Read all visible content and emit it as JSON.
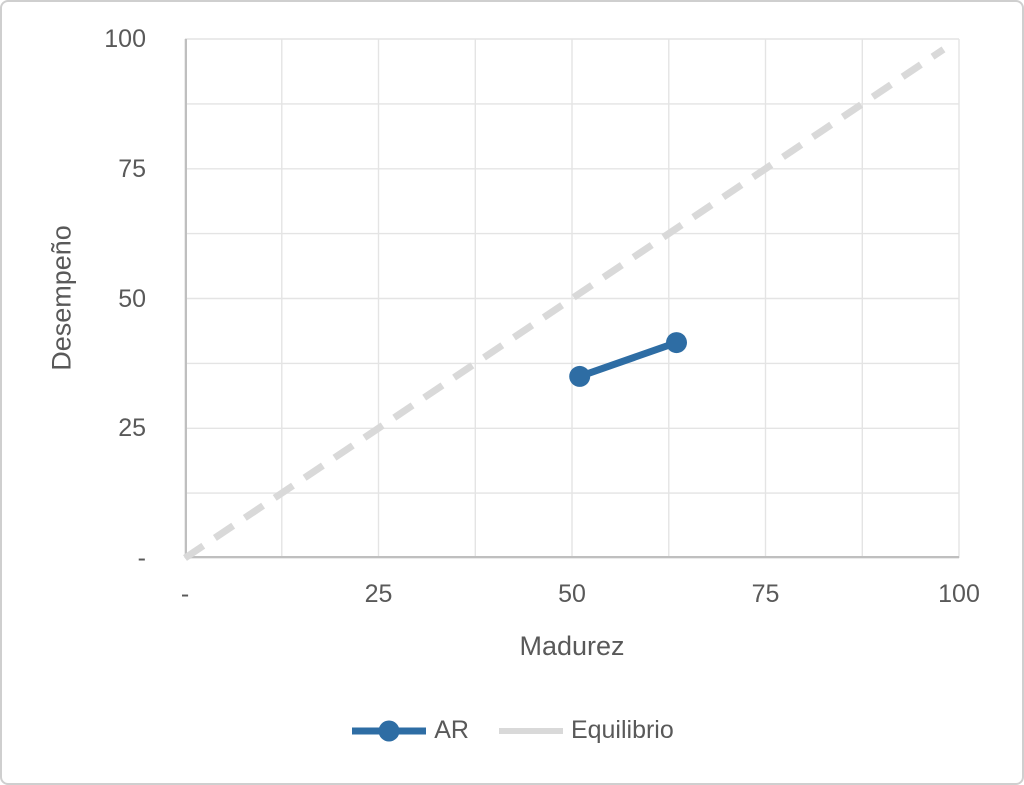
{
  "colors": {
    "accent_blue": "#2E6DA4",
    "equilibrio_gray": "#D9D9D9",
    "gridline": "#E4E4E4",
    "axis_line": "#BFBFBF",
    "text": "#595959",
    "background": "#FFFFFF",
    "frame_border": "#CFCFCF"
  },
  "chart_data": {
    "type": "line",
    "title": "",
    "xlabel": "Madurez",
    "ylabel": "Desempeño",
    "xlim": [
      0,
      100
    ],
    "ylim": [
      0,
      100
    ],
    "gridline_interval": 12.5,
    "grid": true,
    "legend_position": "bottom",
    "x_ticks": [
      {
        "value": 0,
        "label": "-"
      },
      {
        "value": 25,
        "label": "25"
      },
      {
        "value": 50,
        "label": "50"
      },
      {
        "value": 75,
        "label": "75"
      },
      {
        "value": 100,
        "label": "100"
      }
    ],
    "y_ticks": [
      {
        "value": 0,
        "label": "-"
      },
      {
        "value": 25,
        "label": "25"
      },
      {
        "value": 50,
        "label": "50"
      },
      {
        "value": 75,
        "label": "75"
      },
      {
        "value": 100,
        "label": "100"
      }
    ],
    "series": [
      {
        "name": "AR",
        "style": "solid-with-markers",
        "color": "#2E6DA4",
        "points": [
          [
            51,
            35
          ],
          [
            63.5,
            41.5
          ]
        ]
      },
      {
        "name": "Equilibrio",
        "style": "dashed",
        "color": "#D9D9D9",
        "points": [
          [
            0,
            0
          ],
          [
            98,
            98
          ]
        ]
      }
    ]
  }
}
